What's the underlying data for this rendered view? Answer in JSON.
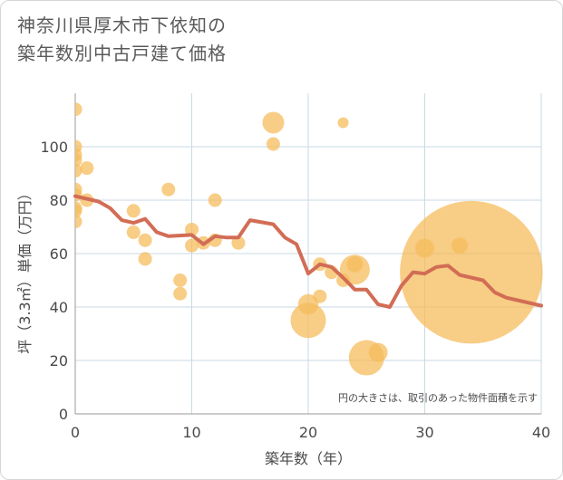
{
  "title_line1": "神奈川県厚木市下依知の",
  "title_line2": "築年数別中古戸建て価格",
  "chart_data": {
    "type": "scatter",
    "title": "神奈川県厚木市下依知の築年数別中古戸建て価格",
    "xlabel": "築年数（年）",
    "ylabel": "坪（3.3㎡）単価（万円）",
    "xlim": [
      0,
      40
    ],
    "ylim": [
      0,
      120
    ],
    "xticks": [
      0,
      10,
      20,
      30,
      40
    ],
    "yticks": [
      0,
      20,
      40,
      60,
      80,
      100
    ],
    "note": "円の大きさは、取引のあった物件面積を示す",
    "colors": {
      "scatter": "#f5bc5c",
      "line": "#d26d55",
      "grid": "#c9d9e3"
    },
    "scatter": [
      {
        "x": 0,
        "y": 114,
        "size": 1
      },
      {
        "x": 0,
        "y": 100,
        "size": 1
      },
      {
        "x": 0,
        "y": 97,
        "size": 1
      },
      {
        "x": 0,
        "y": 95,
        "size": 1
      },
      {
        "x": 0,
        "y": 91,
        "size": 1
      },
      {
        "x": 0,
        "y": 84,
        "size": 1
      },
      {
        "x": 0,
        "y": 82,
        "size": 1
      },
      {
        "x": 0,
        "y": 77,
        "size": 1
      },
      {
        "x": 0,
        "y": 76,
        "size": 1
      },
      {
        "x": 0,
        "y": 72,
        "size": 1
      },
      {
        "x": 1,
        "y": 92,
        "size": 1
      },
      {
        "x": 1,
        "y": 80,
        "size": 1
      },
      {
        "x": 5,
        "y": 76,
        "size": 1
      },
      {
        "x": 5,
        "y": 68,
        "size": 1
      },
      {
        "x": 6,
        "y": 65,
        "size": 1
      },
      {
        "x": 6,
        "y": 58,
        "size": 1
      },
      {
        "x": 8,
        "y": 84,
        "size": 1
      },
      {
        "x": 9,
        "y": 50,
        "size": 1
      },
      {
        "x": 9,
        "y": 45,
        "size": 1
      },
      {
        "x": 10,
        "y": 69,
        "size": 1
      },
      {
        "x": 10,
        "y": 63,
        "size": 1
      },
      {
        "x": 11,
        "y": 64,
        "size": 1
      },
      {
        "x": 12,
        "y": 80,
        "size": 1
      },
      {
        "x": 12,
        "y": 65,
        "size": 1
      },
      {
        "x": 14,
        "y": 64,
        "size": 1
      },
      {
        "x": 17,
        "y": 109,
        "size": 1.6
      },
      {
        "x": 17,
        "y": 101,
        "size": 1
      },
      {
        "x": 20,
        "y": 41,
        "size": 1.5
      },
      {
        "x": 20,
        "y": 35,
        "size": 2.6
      },
      {
        "x": 21,
        "y": 56,
        "size": 1
      },
      {
        "x": 21,
        "y": 44,
        "size": 1
      },
      {
        "x": 22,
        "y": 53,
        "size": 1
      },
      {
        "x": 23,
        "y": 109,
        "size": 0.8
      },
      {
        "x": 23,
        "y": 50,
        "size": 1
      },
      {
        "x": 24,
        "y": 56,
        "size": 1.2
      },
      {
        "x": 24,
        "y": 54,
        "size": 2.2
      },
      {
        "x": 25,
        "y": 21,
        "size": 2.6
      },
      {
        "x": 26,
        "y": 23,
        "size": 1.4
      },
      {
        "x": 30,
        "y": 62,
        "size": 1.4
      },
      {
        "x": 33,
        "y": 63,
        "size": 1.2
      },
      {
        "x": 34,
        "y": 53,
        "size": 10.5
      }
    ],
    "trend": {
      "x": [
        0,
        1,
        2,
        3,
        4,
        5,
        6,
        7,
        8,
        10,
        11,
        12,
        13,
        14,
        15,
        17,
        18,
        19,
        20,
        21,
        22,
        23,
        24,
        25,
        26,
        27,
        28,
        29,
        30,
        31,
        32,
        33,
        35,
        36,
        37,
        40
      ],
      "y": [
        81.5,
        80.5,
        79.5,
        77,
        72.5,
        71.5,
        73,
        68,
        66.5,
        67,
        63.5,
        66.5,
        66,
        66,
        72.5,
        71,
        66,
        63.5,
        52.5,
        56,
        55,
        51,
        46.5,
        46.5,
        41,
        40,
        48,
        53,
        52.5,
        55,
        55.5,
        52,
        50,
        45.5,
        43.5,
        40.5
      ]
    }
  }
}
